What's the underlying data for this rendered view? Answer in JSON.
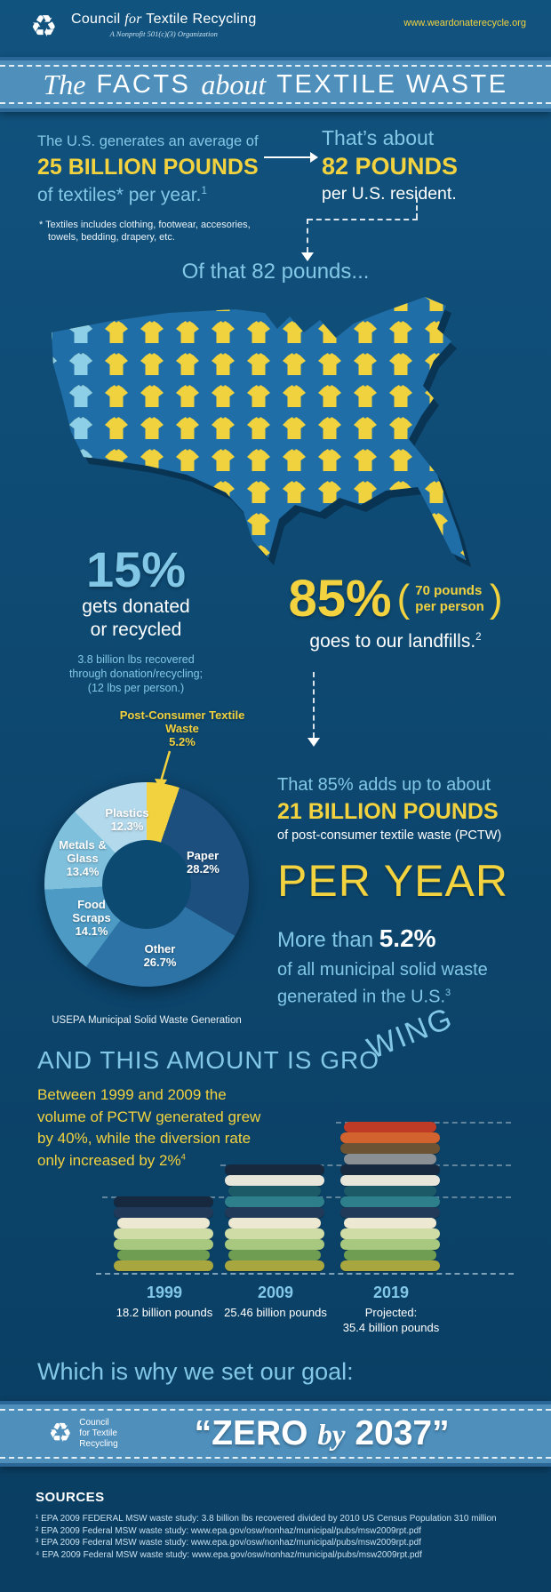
{
  "colors": {
    "background_top": "#11537f",
    "background_bottom": "#0a3e62",
    "banner_blue": "#4e8fbc",
    "accent_yellow": "#f2d23e",
    "accent_lightblue": "#82c8e6",
    "map_blue": "#1f6ea7",
    "map_shirt_yellow": "#f0d23f",
    "map_shirt_lightblue": "#8ecfe8"
  },
  "header": {
    "recycle_icon": "♻",
    "org_line_pre": "Council",
    "org_line_for": "for",
    "org_line_post": "Textile Recycling",
    "org_subtitle": "A Nonprofit 501(c)(3) Organization",
    "website": "www.weardonaterecycle.org"
  },
  "title_banner": {
    "word1": "The",
    "word2": "FACTS",
    "word3": "about",
    "word4": "TEXTILE WASTE"
  },
  "intro": {
    "left_line1": "The U.S. generates an average of",
    "left_line2": "25 BILLION POUNDS",
    "left_line3": "of textiles* per year.",
    "left_sup": "1",
    "footnote_line1": "* Textiles includes clothing, footwear, accesories,",
    "footnote_line2": "towels, bedding, drapery, etc.",
    "right_line1": "That’s about",
    "right_line2": "82 POUNDS",
    "right_line3": "per U.S. resident.",
    "of_that": "Of that 82 pounds..."
  },
  "donated": {
    "pct": "15%",
    "line1": "gets donated",
    "line2": "or recycled",
    "detail1": "3.8 billion lbs recovered",
    "detail2": "through donation/recycling;",
    "detail3": "(12 lbs per person.)"
  },
  "landfill": {
    "pct": "85%",
    "paren_line1": "70 pounds",
    "paren_line2": "per person",
    "line": "goes to our landfills.",
    "sup": "2"
  },
  "landfill_detail": {
    "line1": "That 85% adds up to about",
    "line2": "21 BILLION POUNDS",
    "line3": "of post-consumer textile waste (PCTW)",
    "line4": "PER YEAR",
    "line5a": "More than ",
    "line5b": "5.2%",
    "line6": "of all municipal solid waste",
    "line7": "generated in the U.S.",
    "line7_sup": "3"
  },
  "chart_data": [
    {
      "type": "pie",
      "style": "donut",
      "title": "USEPA Municipal Solid Waste Generation",
      "legend_position": "on-slices",
      "slices": [
        {
          "label": "Post-Consumer Textile Waste",
          "pct": "5.2%",
          "value": 5.2,
          "color": "#f2d23e"
        },
        {
          "label": "Paper",
          "pct": "28.2%",
          "value": 28.2,
          "color": "#1c4f7e"
        },
        {
          "label": "Other",
          "pct": "26.7%",
          "value": 26.7,
          "color": "#2d73a5"
        },
        {
          "label": "Food Scraps",
          "pct": "14.1%",
          "value": 14.1,
          "color": "#4d9bc5"
        },
        {
          "label": "Metals & Glass",
          "pct": "13.4%",
          "value": 13.4,
          "color": "#7fc0dd"
        },
        {
          "label": "Plastics",
          "pct": "12.3%",
          "value": 12.3,
          "color": "#b3d9ec"
        }
      ]
    },
    {
      "type": "bar",
      "title": "Volume of post-consumer textile waste generated",
      "categories": [
        "1999",
        "2009",
        "2019"
      ],
      "values": [
        18.2,
        25.46,
        35.4
      ],
      "unit": "billion pounds",
      "bars": [
        {
          "year": "1999",
          "label1": "18.2 billion pounds",
          "label2": "",
          "layers": [
            "#a8a63f",
            "#6f9e52",
            "#a9c87f",
            "#cfdca6",
            "#ece8d2",
            "#223a5a",
            "#16293f"
          ]
        },
        {
          "year": "2009",
          "label1": "25.46 billion pounds",
          "label2": "",
          "layers": [
            "#a8a63f",
            "#6f9e52",
            "#a9c87f",
            "#cfdca6",
            "#ece8d2",
            "#223a5a",
            "#2e7f8c",
            "#1d5a68",
            "#e8e6da",
            "#16293f"
          ]
        },
        {
          "year": "2019",
          "label1": "Projected:",
          "label2": "35.4 billion pounds",
          "layers": [
            "#a8a63f",
            "#6f9e52",
            "#a9c87f",
            "#cfdca6",
            "#ece8d2",
            "#223a5a",
            "#2e7f8c",
            "#1d5a68",
            "#e8e6da",
            "#16293f",
            "#8a8f93",
            "#6b5333",
            "#d2622e",
            "#c03b26"
          ]
        }
      ]
    }
  ],
  "growing": {
    "title_main": "AND THIS AMOUNT IS GRO",
    "title_tail": "WING",
    "body": "Between 1999 and 2009 the volume of PCTW generated grew by 40%, while the diversion rate only increased by 2%",
    "body_sup": "4"
  },
  "goal": {
    "lead": "Which is why we set our goal:",
    "quote_open": "“ZERO ",
    "quote_by": "by",
    "quote_close": " 2037”",
    "recycle_icon": "♻",
    "logo_line1": "Council",
    "logo_line2": "for Textile",
    "logo_line3": "Recycling"
  },
  "sources": {
    "heading": "SOURCES",
    "items": [
      "¹ EPA 2009 FEDERAL MSW waste study: 3.8 billion lbs recovered  divided by 2010 US Census Population 310 million",
      "² EPA 2009 Federal MSW waste study: www.epa.gov/osw/nonhaz/municipal/pubs/msw2009rpt.pdf",
      "³ EPA 2009 Federal MSW waste study: www.epa.gov/osw/nonhaz/municipal/pubs/msw2009rpt.pdf",
      "⁴ EPA 2009 Federal MSW waste study: www.epa.gov/osw/nonhaz/municipal/pubs/msw2009rpt.pdf"
    ]
  }
}
